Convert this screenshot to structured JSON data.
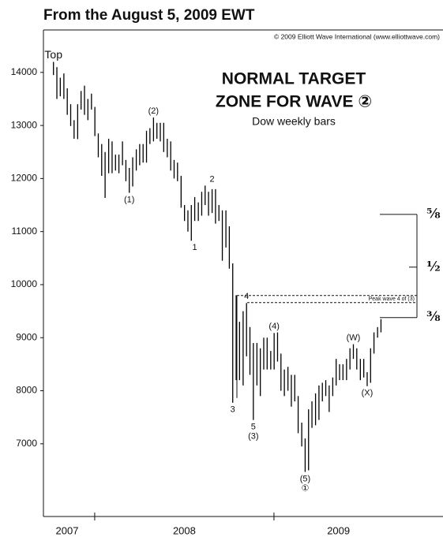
{
  "chart_data": {
    "type": "range_bar",
    "header": "From the August 5, 2009 EWT",
    "copyright": "© 2009 Elliott Wave International (www.elliottwave.com)",
    "title": [
      "NORMAL TARGET",
      "ZONE FOR WAVE ②"
    ],
    "subtitle": "Dow weekly bars",
    "color": "#000000",
    "ylim": [
      5630,
      14800
    ],
    "yticks": [
      7000,
      8000,
      9000,
      10000,
      11000,
      12000,
      13000,
      14000
    ],
    "xlim": [
      2007.714,
      2009.943
    ],
    "xticks": [
      2008,
      2009
    ],
    "year_labels": [
      {
        "value": 2007.846,
        "label": "2007"
      },
      {
        "value": 2008.5,
        "label": "2008"
      },
      {
        "value": 2009.36,
        "label": "2009"
      }
    ],
    "x": [
      2007.77,
      2007.789,
      2007.808,
      2007.828,
      2007.847,
      2007.866,
      2007.885,
      2007.905,
      2007.924,
      2007.943,
      2007.962,
      2007.982,
      2008.001,
      2008.02,
      2008.039,
      2008.058,
      2008.078,
      2008.097,
      2008.116,
      2008.135,
      2008.155,
      2008.174,
      2008.193,
      2008.212,
      2008.232,
      2008.251,
      2008.27,
      2008.289,
      2008.308,
      2008.328,
      2008.347,
      2008.366,
      2008.385,
      2008.405,
      2008.424,
      2008.443,
      2008.462,
      2008.482,
      2008.501,
      2008.52,
      2008.539,
      2008.558,
      2008.578,
      2008.597,
      2008.616,
      2008.635,
      2008.655,
      2008.674,
      2008.693,
      2008.712,
      2008.732,
      2008.751,
      2008.77,
      2008.789,
      2008.808,
      2008.828,
      2008.847,
      2008.866,
      2008.885,
      2008.905,
      2008.924,
      2008.943,
      2008.962,
      2008.982,
      2009.001,
      2009.02,
      2009.039,
      2009.058,
      2009.078,
      2009.097,
      2009.116,
      2009.135,
      2009.155,
      2009.174,
      2009.193,
      2009.212,
      2009.232,
      2009.251,
      2009.27,
      2009.289,
      2009.308,
      2009.328,
      2009.347,
      2009.366,
      2009.385,
      2009.405,
      2009.424,
      2009.443,
      2009.462,
      2009.482,
      2009.501,
      2009.52,
      2009.539,
      2009.558,
      2009.578,
      2009.597
    ],
    "high": [
      14198,
      14100,
      13900,
      13980,
      13700,
      13400,
      13100,
      13400,
      13650,
      13750,
      13500,
      13600,
      13350,
      12850,
      12650,
      12500,
      12750,
      12700,
      12450,
      12450,
      12700,
      12350,
      12200,
      12400,
      12550,
      12650,
      12650,
      12900,
      12950,
      13150,
      13050,
      13050,
      13050,
      12750,
      12700,
      12350,
      12300,
      12050,
      11500,
      11400,
      11500,
      11650,
      11550,
      11750,
      11867,
      11750,
      11800,
      11800,
      11500,
      11400,
      11400,
      11100,
      10400,
      9800,
      9300,
      9500,
      9653,
      9200,
      8900,
      8900,
      8800,
      9000,
      9000,
      8750,
      9088,
      9100,
      8700,
      8400,
      8450,
      8300,
      8300,
      7900,
      7400,
      7100,
      7650,
      7800,
      7950,
      8100,
      8150,
      8200,
      8100,
      8250,
      8600,
      8500,
      8500,
      8600,
      8800,
      8877,
      8800,
      8600,
      8600,
      8350,
      8800,
      9100,
      9200,
      9350
    ],
    "low": [
      13950,
      13500,
      13550,
      13500,
      13200,
      12990,
      12750,
      12743,
      13300,
      13200,
      13100,
      13300,
      12800,
      12400,
      12050,
      11635,
      12100,
      12100,
      12150,
      12100,
      12250,
      11950,
      11731,
      11850,
      12150,
      12250,
      12300,
      12300,
      12650,
      12700,
      12750,
      12700,
      12500,
      12400,
      12150,
      12000,
      11950,
      11450,
      11200,
      11000,
      10827,
      11200,
      11200,
      11300,
      11500,
      11300,
      11350,
      11150,
      11200,
      10450,
      10700,
      10300,
      7773,
      8200,
      8200,
      8100,
      8650,
      8300,
      7449,
      8100,
      7900,
      8400,
      8400,
      8400,
      8400,
      8550,
      8000,
      7900,
      8000,
      7700,
      7800,
      7200,
      6950,
      6470,
      6500,
      7300,
      7350,
      7450,
      7800,
      7900,
      7600,
      7900,
      8100,
      8200,
      8200,
      8200,
      8400,
      8600,
      8400,
      8200,
      8250,
      8087,
      8150,
      8700,
      9000,
      9100
    ],
    "annotations": [
      {
        "text": [
          "Top"
        ],
        "x": 2007.77,
        "y": 14198,
        "position": "above"
      },
      {
        "text": [
          "(1)"
        ],
        "x": 2008.193,
        "y": 11731,
        "position": "below"
      },
      {
        "text": [
          "(2)"
        ],
        "x": 2008.328,
        "y": 13150,
        "position": "above"
      },
      {
        "text": [
          "1"
        ],
        "x": 2008.558,
        "y": 10827,
        "position": "below"
      },
      {
        "text": [
          "2"
        ],
        "x": 2008.655,
        "y": 11867,
        "position": "above"
      },
      {
        "text": [
          "3"
        ],
        "x": 2008.77,
        "y": 7773,
        "position": "below"
      },
      {
        "text": [
          "4"
        ],
        "x": 2008.847,
        "y": 9653,
        "position": "above"
      },
      {
        "text": [
          "5",
          "(3)"
        ],
        "x": 2008.885,
        "y": 7449,
        "position": "below"
      },
      {
        "text": [
          "(4)"
        ],
        "x": 2009.001,
        "y": 9088,
        "position": "above"
      },
      {
        "text": [
          "(5)",
          "①"
        ],
        "x": 2009.174,
        "y": 6470,
        "position": "below"
      },
      {
        "text": [
          "(W)"
        ],
        "x": 2009.443,
        "y": 8877,
        "position": "above"
      },
      {
        "text": [
          "(X)"
        ],
        "x": 2009.52,
        "y": 8087,
        "position": "below"
      }
    ],
    "peak_zone": {
      "label": "Peak wave 4 of (3)",
      "values": [
        9795,
        9661
      ]
    },
    "retracements": [
      {
        "label": "⅜",
        "value": 9379
      },
      {
        "label": "½",
        "value": 10330
      },
      {
        "label": "⅝",
        "value": 11325
      }
    ]
  }
}
